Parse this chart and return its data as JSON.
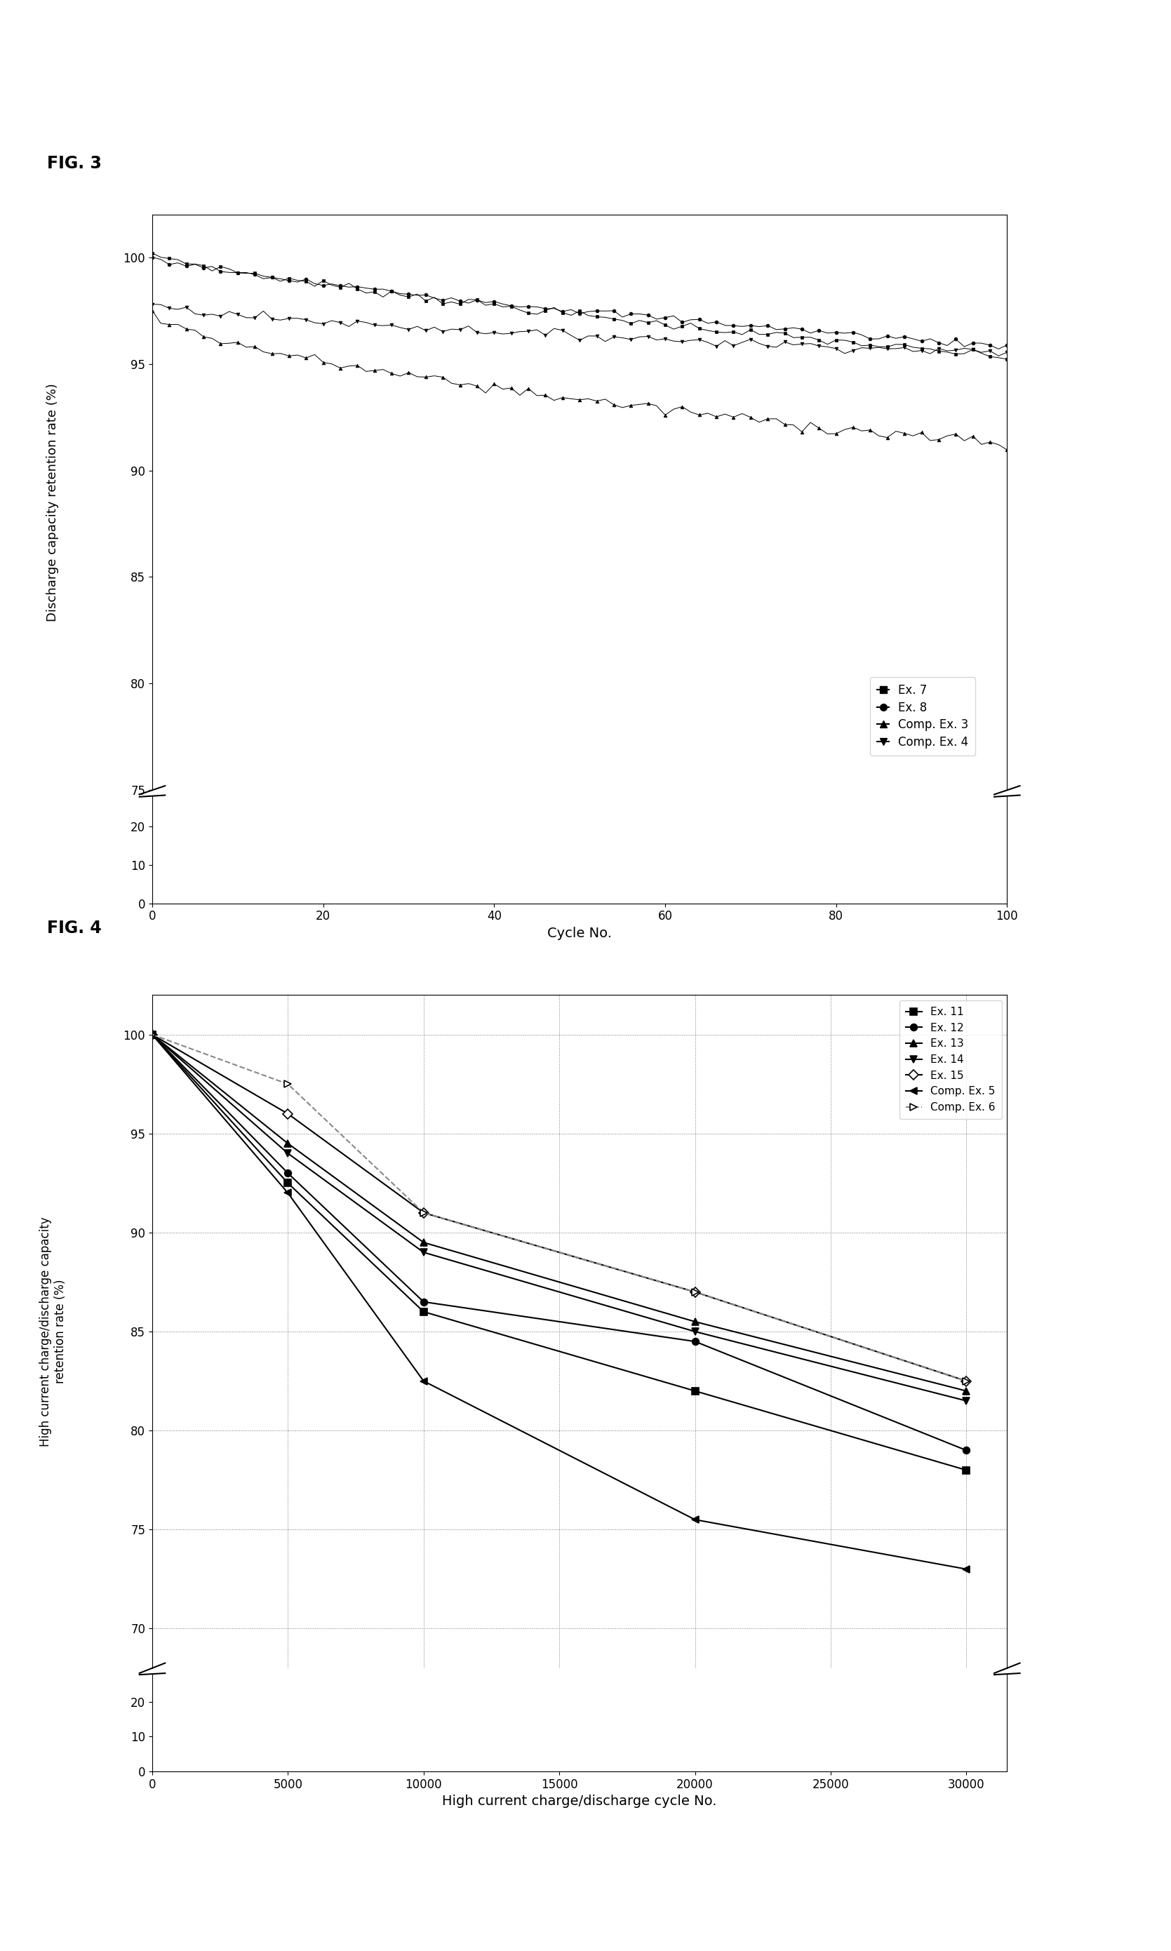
{
  "fig3": {
    "title": "FIG. 3",
    "xlabel": "Cycle No.",
    "ylabel": "Discharge capacity retention rate (%)",
    "xlim": [
      0,
      100
    ],
    "xticks": [
      0,
      20,
      40,
      60,
      80,
      100
    ],
    "yticks_upper": [
      75,
      80,
      85,
      90,
      95,
      100
    ],
    "yticks_lower": [
      0,
      10,
      20
    ],
    "series": [
      {
        "label": "Ex. 7",
        "marker": "s",
        "end_y": 95.3,
        "start_y": 100.2,
        "noise": 0.1,
        "power": 0.75
      },
      {
        "label": "Ex. 8",
        "marker": "o",
        "end_y": 95.8,
        "start_y": 100.0,
        "noise": 0.08,
        "power": 0.75
      },
      {
        "label": "Comp. Ex. 3",
        "marker": "^",
        "end_y": 91.2,
        "start_y": 97.5,
        "noise": 0.15,
        "power": 0.6
      },
      {
        "label": "Comp. Ex. 4",
        "marker": "v",
        "end_y": 95.5,
        "start_y": 97.8,
        "noise": 0.1,
        "power": 0.65
      }
    ]
  },
  "fig4": {
    "title": "FIG. 4",
    "xlabel": "High current charge/discharge cycle No.",
    "ylabel": "High current charge/discharge capacity\nretention rate (%)",
    "xlim": [
      0,
      31000
    ],
    "xticks": [
      0,
      5000,
      10000,
      15000,
      20000,
      25000,
      30000
    ],
    "yticks_upper": [
      70,
      75,
      80,
      85,
      90,
      95,
      100
    ],
    "yticks_lower": [
      0,
      10,
      20
    ],
    "series": [
      {
        "label": "Ex. 11",
        "marker": "s",
        "linestyle": "-",
        "color": "#000000",
        "mfc": "#000000",
        "x": [
          0,
          5000,
          10000,
          20000,
          30000
        ],
        "y": [
          100,
          92.5,
          86,
          82,
          78
        ]
      },
      {
        "label": "Ex. 12",
        "marker": "o",
        "linestyle": "-",
        "color": "#000000",
        "mfc": "#000000",
        "x": [
          0,
          5000,
          10000,
          20000,
          30000
        ],
        "y": [
          100,
          93.0,
          86.5,
          84.5,
          79
        ]
      },
      {
        "label": "Ex. 13",
        "marker": "^",
        "linestyle": "-",
        "color": "#000000",
        "mfc": "#000000",
        "x": [
          0,
          5000,
          10000,
          20000,
          30000
        ],
        "y": [
          100,
          94.5,
          89.5,
          85.5,
          82
        ]
      },
      {
        "label": "Ex. 14",
        "marker": "v",
        "linestyle": "-",
        "color": "#000000",
        "mfc": "#000000",
        "x": [
          0,
          5000,
          10000,
          20000,
          30000
        ],
        "y": [
          100,
          94.0,
          89.0,
          85.0,
          81.5
        ]
      },
      {
        "label": "Ex. 15",
        "marker": "D",
        "linestyle": "-",
        "color": "#000000",
        "mfc": "#ffffff",
        "x": [
          0,
          5000,
          10000,
          20000,
          30000
        ],
        "y": [
          100,
          96.0,
          91.0,
          87.0,
          82.5
        ]
      },
      {
        "label": "Comp. Ex. 5",
        "marker": "<",
        "linestyle": "-",
        "color": "#000000",
        "mfc": "#000000",
        "x": [
          0,
          5000,
          10000,
          20000,
          30000
        ],
        "y": [
          100,
          92.0,
          82.5,
          75.5,
          73
        ]
      },
      {
        "label": "Comp. Ex. 6",
        "marker": ">",
        "linestyle": "--",
        "color": "#888888",
        "mfc": "#ffffff",
        "x": [
          0,
          5000,
          10000,
          20000,
          30000
        ],
        "y": [
          100,
          97.5,
          91.0,
          87.0,
          82.5
        ]
      }
    ]
  },
  "background_color": "#ffffff"
}
